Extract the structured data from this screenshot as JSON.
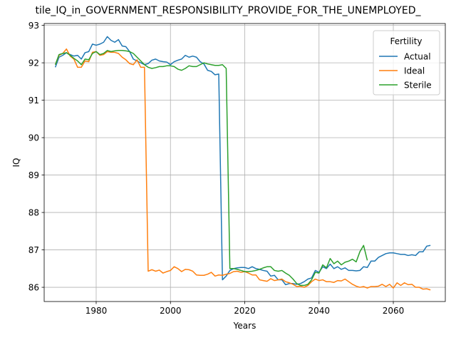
{
  "chart_data": {
    "type": "line",
    "title": "tile_IQ_in_GOVERNMENT_RESPONSIBILITY_PROVIDE_FOR_THE_UNEMPLOYED_",
    "xlabel": "Years",
    "ylabel": "IQ",
    "xlim": [
      1966,
      2074
    ],
    "ylim": [
      85.62,
      93.05
    ],
    "x_ticks": [
      1980,
      2000,
      2020,
      2040,
      2060
    ],
    "y_ticks": [
      86,
      87,
      88,
      89,
      90,
      91,
      92,
      93
    ],
    "grid": true,
    "legend": {
      "title": "Fertility",
      "location": "top-right"
    },
    "series": [
      {
        "name": "Actual",
        "color": "#1f77b4",
        "points": [
          [
            1969,
            91.88
          ],
          [
            1970,
            92.15
          ],
          [
            1971,
            92.2
          ],
          [
            1972,
            92.27
          ],
          [
            1973,
            92.22
          ],
          [
            1974,
            92.18
          ],
          [
            1975,
            92.2
          ],
          [
            1976,
            92.1
          ],
          [
            1977,
            92.27
          ],
          [
            1978,
            92.3
          ],
          [
            1979,
            92.5
          ],
          [
            1980,
            92.47
          ],
          [
            1981,
            92.5
          ],
          [
            1982,
            92.55
          ],
          [
            1983,
            92.7
          ],
          [
            1984,
            92.6
          ],
          [
            1985,
            92.55
          ],
          [
            1986,
            92.62
          ],
          [
            1987,
            92.45
          ],
          [
            1988,
            92.43
          ],
          [
            1989,
            92.3
          ],
          [
            1990,
            92.1
          ],
          [
            1991,
            92.05
          ],
          [
            1992,
            92.0
          ],
          [
            1993,
            91.95
          ],
          [
            1994,
            91.98
          ],
          [
            1995,
            92.07
          ],
          [
            1996,
            92.1
          ],
          [
            1997,
            92.05
          ],
          [
            1998,
            92.03
          ],
          [
            1999,
            92.02
          ],
          [
            2000,
            91.95
          ],
          [
            2001,
            92.03
          ],
          [
            2002,
            92.07
          ],
          [
            2003,
            92.1
          ],
          [
            2004,
            92.2
          ],
          [
            2005,
            92.15
          ],
          [
            2006,
            92.18
          ],
          [
            2007,
            92.15
          ],
          [
            2008,
            92.03
          ],
          [
            2009,
            91.97
          ],
          [
            2010,
            91.8
          ],
          [
            2011,
            91.77
          ],
          [
            2012,
            91.68
          ],
          [
            2013,
            91.7
          ],
          [
            2014,
            86.2
          ],
          [
            2015,
            86.3
          ],
          [
            2016,
            86.45
          ],
          [
            2017,
            86.5
          ],
          [
            2018,
            86.52
          ],
          [
            2019,
            86.53
          ],
          [
            2020,
            86.53
          ],
          [
            2021,
            86.5
          ],
          [
            2022,
            86.55
          ],
          [
            2023,
            86.5
          ],
          [
            2024,
            86.48
          ],
          [
            2025,
            86.45
          ],
          [
            2026,
            86.43
          ],
          [
            2027,
            86.3
          ],
          [
            2028,
            86.32
          ],
          [
            2029,
            86.2
          ],
          [
            2030,
            86.2
          ],
          [
            2031,
            86.07
          ],
          [
            2032,
            86.1
          ],
          [
            2033,
            86.1
          ],
          [
            2034,
            86.08
          ],
          [
            2035,
            86.1
          ],
          [
            2036,
            86.15
          ],
          [
            2037,
            86.22
          ],
          [
            2038,
            86.25
          ],
          [
            2039,
            86.45
          ],
          [
            2040,
            86.4
          ],
          [
            2041,
            86.55
          ],
          [
            2042,
            86.5
          ],
          [
            2043,
            86.62
          ],
          [
            2044,
            86.5
          ],
          [
            2045,
            86.55
          ],
          [
            2046,
            86.48
          ],
          [
            2047,
            86.52
          ],
          [
            2048,
            86.45
          ],
          [
            2049,
            86.45
          ],
          [
            2050,
            86.44
          ],
          [
            2051,
            86.45
          ],
          [
            2052,
            86.55
          ],
          [
            2053,
            86.53
          ],
          [
            2054,
            86.7
          ],
          [
            2055,
            86.7
          ],
          [
            2056,
            86.8
          ],
          [
            2057,
            86.85
          ],
          [
            2058,
            86.9
          ],
          [
            2059,
            86.92
          ],
          [
            2060,
            86.92
          ],
          [
            2061,
            86.9
          ],
          [
            2062,
            86.88
          ],
          [
            2063,
            86.88
          ],
          [
            2064,
            86.85
          ],
          [
            2065,
            86.87
          ],
          [
            2066,
            86.85
          ],
          [
            2067,
            86.95
          ],
          [
            2068,
            86.95
          ],
          [
            2069,
            87.1
          ],
          [
            2070,
            87.12
          ]
        ]
      },
      {
        "name": "Ideal",
        "color": "#ff7f0e",
        "points": [
          [
            1969,
            91.95
          ],
          [
            1970,
            92.2
          ],
          [
            1971,
            92.25
          ],
          [
            1972,
            92.37
          ],
          [
            1973,
            92.18
          ],
          [
            1974,
            92.1
          ],
          [
            1975,
            91.88
          ],
          [
            1976,
            91.88
          ],
          [
            1977,
            92.05
          ],
          [
            1978,
            92.03
          ],
          [
            1979,
            92.28
          ],
          [
            1980,
            92.3
          ],
          [
            1981,
            92.2
          ],
          [
            1982,
            92.22
          ],
          [
            1983,
            92.3
          ],
          [
            1984,
            92.28
          ],
          [
            1985,
            92.28
          ],
          [
            1986,
            92.25
          ],
          [
            1987,
            92.15
          ],
          [
            1988,
            92.08
          ],
          [
            1989,
            91.98
          ],
          [
            1990,
            91.95
          ],
          [
            1991,
            92.08
          ],
          [
            1992,
            91.88
          ],
          [
            1993,
            91.88
          ],
          [
            1994,
            86.43
          ],
          [
            1995,
            86.47
          ],
          [
            1996,
            86.43
          ],
          [
            1997,
            86.46
          ],
          [
            1998,
            86.38
          ],
          [
            1999,
            86.42
          ],
          [
            2000,
            86.45
          ],
          [
            2001,
            86.55
          ],
          [
            2002,
            86.5
          ],
          [
            2003,
            86.42
          ],
          [
            2004,
            86.48
          ],
          [
            2005,
            86.47
          ],
          [
            2006,
            86.43
          ],
          [
            2007,
            86.33
          ],
          [
            2008,
            86.32
          ],
          [
            2009,
            86.32
          ],
          [
            2010,
            86.35
          ],
          [
            2011,
            86.4
          ],
          [
            2012,
            86.3
          ],
          [
            2013,
            86.33
          ],
          [
            2014,
            86.32
          ],
          [
            2015,
            86.35
          ],
          [
            2016,
            86.37
          ],
          [
            2017,
            86.42
          ],
          [
            2018,
            86.43
          ],
          [
            2019,
            86.4
          ],
          [
            2020,
            86.42
          ],
          [
            2021,
            86.38
          ],
          [
            2022,
            86.33
          ],
          [
            2023,
            86.33
          ],
          [
            2024,
            86.2
          ],
          [
            2025,
            86.18
          ],
          [
            2026,
            86.16
          ],
          [
            2027,
            86.23
          ],
          [
            2028,
            86.18
          ],
          [
            2029,
            86.2
          ],
          [
            2030,
            86.22
          ],
          [
            2031,
            86.15
          ],
          [
            2032,
            86.12
          ],
          [
            2033,
            86.08
          ],
          [
            2034,
            86.02
          ],
          [
            2035,
            86.03
          ],
          [
            2036,
            86.0
          ],
          [
            2037,
            86.05
          ],
          [
            2038,
            86.15
          ],
          [
            2039,
            86.22
          ],
          [
            2040,
            86.18
          ],
          [
            2041,
            86.2
          ],
          [
            2042,
            86.15
          ],
          [
            2043,
            86.15
          ],
          [
            2044,
            86.13
          ],
          [
            2045,
            86.18
          ],
          [
            2046,
            86.17
          ],
          [
            2047,
            86.22
          ],
          [
            2048,
            86.15
          ],
          [
            2049,
            86.08
          ],
          [
            2050,
            86.03
          ],
          [
            2051,
            86.0
          ],
          [
            2052,
            86.02
          ],
          [
            2053,
            85.98
          ],
          [
            2054,
            86.02
          ],
          [
            2055,
            86.02
          ],
          [
            2056,
            86.03
          ],
          [
            2057,
            86.08
          ],
          [
            2058,
            86.02
          ],
          [
            2059,
            86.08
          ],
          [
            2060,
            85.98
          ],
          [
            2061,
            86.12
          ],
          [
            2062,
            86.05
          ],
          [
            2063,
            86.12
          ],
          [
            2064,
            86.07
          ],
          [
            2065,
            86.08
          ],
          [
            2066,
            86.0
          ],
          [
            2067,
            86.0
          ],
          [
            2068,
            85.95
          ],
          [
            2069,
            85.96
          ],
          [
            2070,
            85.93
          ]
        ]
      },
      {
        "name": "Sterile",
        "color": "#2ca02c",
        "points": [
          [
            1969,
            91.95
          ],
          [
            1970,
            92.22
          ],
          [
            1971,
            92.25
          ],
          [
            1972,
            92.27
          ],
          [
            1973,
            92.2
          ],
          [
            1974,
            92.12
          ],
          [
            1975,
            92.05
          ],
          [
            1976,
            91.95
          ],
          [
            1977,
            92.1
          ],
          [
            1978,
            92.08
          ],
          [
            1979,
            92.25
          ],
          [
            1980,
            92.3
          ],
          [
            1981,
            92.22
          ],
          [
            1982,
            92.25
          ],
          [
            1983,
            92.33
          ],
          [
            1984,
            92.3
          ],
          [
            1985,
            92.32
          ],
          [
            1986,
            92.33
          ],
          [
            1987,
            92.33
          ],
          [
            1988,
            92.32
          ],
          [
            1989,
            92.3
          ],
          [
            1990,
            92.25
          ],
          [
            1991,
            92.15
          ],
          [
            1992,
            92.05
          ],
          [
            1993,
            91.95
          ],
          [
            1994,
            91.88
          ],
          [
            1995,
            91.85
          ],
          [
            1996,
            91.87
          ],
          [
            1997,
            91.9
          ],
          [
            1998,
            91.9
          ],
          [
            1999,
            91.92
          ],
          [
            2000,
            91.92
          ],
          [
            2001,
            91.9
          ],
          [
            2002,
            91.83
          ],
          [
            2003,
            91.8
          ],
          [
            2004,
            91.85
          ],
          [
            2005,
            91.92
          ],
          [
            2006,
            91.9
          ],
          [
            2007,
            91.9
          ],
          [
            2008,
            91.95
          ],
          [
            2009,
            92.0
          ],
          [
            2010,
            91.97
          ],
          [
            2011,
            91.95
          ],
          [
            2012,
            91.93
          ],
          [
            2013,
            91.93
          ],
          [
            2014,
            91.95
          ],
          [
            2015,
            91.85
          ],
          [
            2016,
            86.5
          ],
          [
            2017,
            86.5
          ],
          [
            2018,
            86.48
          ],
          [
            2019,
            86.45
          ],
          [
            2020,
            86.42
          ],
          [
            2021,
            86.42
          ],
          [
            2022,
            86.43
          ],
          [
            2023,
            86.45
          ],
          [
            2024,
            86.48
          ],
          [
            2025,
            86.52
          ],
          [
            2026,
            86.55
          ],
          [
            2027,
            86.55
          ],
          [
            2028,
            86.45
          ],
          [
            2029,
            86.43
          ],
          [
            2030,
            86.45
          ],
          [
            2031,
            86.38
          ],
          [
            2032,
            86.32
          ],
          [
            2033,
            86.22
          ],
          [
            2034,
            86.1
          ],
          [
            2035,
            86.05
          ],
          [
            2036,
            86.05
          ],
          [
            2037,
            86.08
          ],
          [
            2038,
            86.2
          ],
          [
            2039,
            86.4
          ],
          [
            2040,
            86.38
          ],
          [
            2041,
            86.6
          ],
          [
            2042,
            86.52
          ],
          [
            2043,
            86.77
          ],
          [
            2044,
            86.63
          ],
          [
            2045,
            86.7
          ],
          [
            2046,
            86.6
          ],
          [
            2047,
            86.67
          ],
          [
            2048,
            86.7
          ],
          [
            2049,
            86.75
          ],
          [
            2050,
            86.68
          ],
          [
            2051,
            86.95
          ],
          [
            2052,
            87.12
          ],
          [
            2053,
            86.72
          ]
        ]
      }
    ]
  }
}
